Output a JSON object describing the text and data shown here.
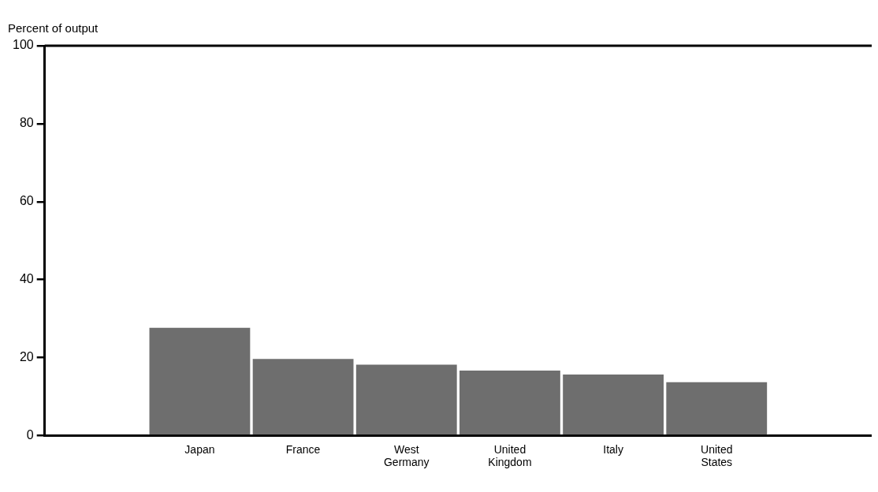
{
  "chart_data": {
    "type": "bar",
    "ylabel": "Percent of output",
    "categories": [
      null,
      "Japan",
      "France",
      "West Germany",
      "United Kingdom",
      "Italy",
      "United States",
      null
    ],
    "values": [
      null,
      28,
      20,
      18.5,
      17,
      16,
      14,
      null
    ],
    "color": "#6e6e6e",
    "ylim": [
      0,
      100
    ],
    "yticks": [
      0,
      20,
      40,
      60,
      80,
      100
    ],
    "grid": false,
    "legend": false
  }
}
